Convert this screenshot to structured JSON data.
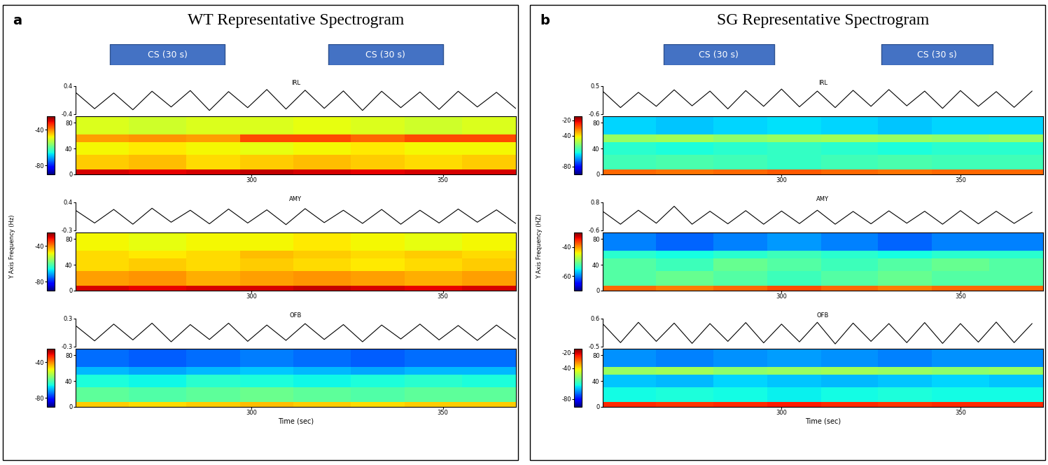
{
  "chart_data": [
    {
      "type": "spectrogram",
      "label": "a",
      "title": "WT Representative Spectrogram",
      "ylabel": "Y Axis Frequency (Hz)",
      "xlabel": "Time (sec)",
      "xlim": [
        254,
        369
      ],
      "xticks": [
        300,
        350
      ],
      "cs": [
        {
          "text": "CS (30 s)",
          "start": 263,
          "end": 293
        },
        {
          "text": "CS (30 s)",
          "start": 320,
          "end": 350
        }
      ],
      "time_edges": [
        254,
        268,
        283,
        297,
        311,
        326,
        340,
        355,
        369
      ],
      "freq_edges": [
        0,
        8,
        30,
        50,
        62,
        90
      ],
      "freq_lim": [
        0,
        90
      ],
      "freq_ticks": [
        0,
        40,
        80
      ],
      "trace_x": [
        254,
        259,
        264,
        269,
        274,
        279,
        284,
        289,
        294,
        299,
        304,
        309,
        314,
        319,
        324,
        329,
        334,
        339,
        344,
        349,
        354,
        359,
        364,
        369
      ],
      "channels": [
        {
          "name": "IRL",
          "ylim": [
            -0.4,
            0.4
          ],
          "yticks": [
            -0.4,
            0.4
          ],
          "trace": [
            0.22,
            -0.25,
            0.2,
            -0.28,
            0.25,
            -0.2,
            0.27,
            -0.3,
            0.24,
            -0.22,
            0.3,
            -0.26,
            0.28,
            -0.24,
            0.26,
            -0.3,
            0.25,
            -0.22,
            0.23,
            -0.27,
            0.25,
            -0.2,
            0.22,
            -0.24
          ],
          "colorbar_range": [
            -90,
            -25
          ],
          "colorbar_ticks": [
            -80,
            -40
          ],
          "cells": [
            [
              -30,
              -31,
              -30,
              -29,
              -30,
              -31,
              -30,
              -30
            ],
            [
              -45,
              -44,
              -46,
              -45,
              -44,
              -45,
              -46,
              -45
            ],
            [
              -48,
              -47,
              -48,
              -49,
              -48,
              -47,
              -48,
              -48
            ],
            [
              -42,
              -41,
              -42,
              -36,
              -36,
              -38,
              -36,
              -36
            ],
            [
              -50,
              -51,
              -50,
              -50,
              -49,
              -50,
              -51,
              -50
            ]
          ]
        },
        {
          "name": "AMY",
          "ylim": [
            -0.3,
            0.4
          ],
          "yticks": [
            -0.3,
            0.4
          ],
          "trace": [
            0.2,
            -0.12,
            0.22,
            -0.15,
            0.25,
            -0.1,
            0.2,
            -0.14,
            0.23,
            -0.12,
            0.21,
            -0.16,
            0.24,
            -0.11,
            0.2,
            -0.13,
            0.22,
            -0.15,
            0.2,
            -0.12,
            0.23,
            -0.1,
            0.21,
            -0.13
          ],
          "colorbar_range": [
            -90,
            -25
          ],
          "colorbar_ticks": [
            -80,
            -40
          ],
          "cells": [
            [
              -30,
              -31,
              -30,
              -30,
              -29,
              -30,
              -31,
              -30
            ],
            [
              -42,
              -41,
              -43,
              -42,
              -41,
              -42,
              -43,
              -42
            ],
            [
              -46,
              -45,
              -46,
              -45,
              -46,
              -47,
              -46,
              -45
            ],
            [
              -46,
              -47,
              -46,
              -44,
              -45,
              -46,
              -45,
              -46
            ],
            [
              -48,
              -49,
              -48,
              -48,
              -47,
              -48,
              -49,
              -48
            ]
          ]
        },
        {
          "name": "OFB",
          "ylim": [
            -0.3,
            0.3
          ],
          "yticks": [
            -0.3,
            0.3
          ],
          "trace": [
            0.15,
            -0.18,
            0.18,
            -0.16,
            0.2,
            -0.2,
            0.17,
            -0.15,
            0.2,
            -0.19,
            0.16,
            -0.17,
            0.19,
            -0.15,
            0.17,
            -0.2,
            0.16,
            -0.14,
            0.18,
            -0.16,
            0.15,
            -0.17,
            0.16,
            -0.14
          ],
          "colorbar_range": [
            -90,
            -25
          ],
          "colorbar_ticks": [
            -80,
            -40
          ],
          "cells": [
            [
              -45,
              -46,
              -45,
              -44,
              -45,
              -46,
              -45,
              -45
            ],
            [
              -60,
              -61,
              -60,
              -59,
              -60,
              -61,
              -60,
              -60
            ],
            [
              -65,
              -66,
              -64,
              -65,
              -66,
              -65,
              -64,
              -65
            ],
            [
              -70,
              -71,
              -70,
              -69,
              -70,
              -71,
              -70,
              -70
            ],
            [
              -75,
              -76,
              -75,
              -74,
              -75,
              -76,
              -75,
              -75
            ]
          ]
        }
      ]
    },
    {
      "type": "spectrogram",
      "label": "b",
      "title": "SG Representative Spectrogram",
      "ylabel": "Y Axis Frequency (HZ)",
      "xlabel": "Time (sec)",
      "xlim": [
        250,
        373
      ],
      "xticks": [
        300,
        350
      ],
      "cs": [
        {
          "text": "CS (30 s)",
          "start": 267,
          "end": 298
        },
        {
          "text": "CS (30 s)",
          "start": 328,
          "end": 359
        }
      ],
      "time_edges": [
        250,
        265,
        281,
        296,
        311,
        327,
        342,
        358,
        373
      ],
      "freq_edges": [
        0,
        8,
        30,
        50,
        62,
        90
      ],
      "freq_lim": [
        0,
        90
      ],
      "freq_ticks": [
        0,
        40,
        80
      ],
      "trace_x": [
        250,
        255,
        260,
        265,
        270,
        275,
        280,
        285,
        290,
        295,
        300,
        305,
        310,
        315,
        320,
        325,
        330,
        335,
        340,
        345,
        350,
        355,
        360,
        365,
        370
      ],
      "channels": [
        {
          "name": "IRL",
          "ylim": [
            -0.6,
            0.5
          ],
          "yticks": [
            -0.6,
            0.5
          ],
          "trace": [
            0.3,
            -0.35,
            0.25,
            -0.3,
            0.35,
            -0.28,
            0.3,
            -0.4,
            0.32,
            -0.3,
            0.38,
            -0.32,
            0.3,
            -0.35,
            0.33,
            -0.3,
            0.36,
            -0.28,
            0.3,
            -0.38,
            0.32,
            -0.3,
            0.28,
            -0.34,
            0.3
          ],
          "colorbar_range": [
            -90,
            -15
          ],
          "colorbar_ticks": [
            -80,
            -40,
            -20
          ],
          "cells": [
            [
              -30,
              -31,
              -30,
              -29,
              -30,
              -31,
              -30,
              -30
            ],
            [
              -58,
              -57,
              -58,
              -59,
              -58,
              -57,
              -58,
              -58
            ],
            [
              -60,
              -61,
              -60,
              -59,
              -60,
              -61,
              -60,
              -60
            ],
            [
              -50,
              -49,
              -51,
              -50,
              -49,
              -50,
              -51,
              -50
            ],
            [
              -65,
              -66,
              -65,
              -64,
              -65,
              -66,
              -65,
              -65
            ]
          ]
        },
        {
          "name": "AMY",
          "ylim": [
            -0.6,
            0.8
          ],
          "yticks": [
            -0.6,
            0.8
          ],
          "trace": [
            0.35,
            -0.3,
            0.4,
            -0.25,
            0.6,
            -0.3,
            0.35,
            -0.28,
            0.38,
            -0.3,
            0.36,
            -0.27,
            0.4,
            -0.3,
            0.34,
            -0.28,
            0.37,
            -0.25,
            0.35,
            -0.3,
            0.38,
            -0.28,
            0.35,
            -0.26,
            0.3
          ],
          "colorbar_range": [
            -70,
            -30
          ],
          "colorbar_ticks": [
            -60,
            -40
          ],
          "cells": [
            [
              -38,
              -39,
              -38,
              -37,
              -38,
              -39,
              -38,
              -38
            ],
            [
              -52,
              -51,
              -52,
              -53,
              -52,
              -51,
              -52,
              -52
            ],
            [
              -52,
              -53,
              -51,
              -52,
              -53,
              -52,
              -51,
              -52
            ],
            [
              -54,
              -55,
              -54,
              -53,
              -54,
              -55,
              -54,
              -54
            ],
            [
              -60,
              -61,
              -60,
              -59,
              -60,
              -61,
              -60,
              -60
            ]
          ]
        },
        {
          "name": "OFB",
          "ylim": [
            -0.5,
            0.6
          ],
          "yticks": [
            -0.5,
            0.6
          ],
          "trace": [
            0.4,
            -0.35,
            0.45,
            -0.3,
            0.42,
            -0.38,
            0.4,
            -0.3,
            0.44,
            -0.36,
            0.38,
            -0.32,
            0.45,
            -0.4,
            0.42,
            -0.3,
            0.4,
            -0.35,
            0.44,
            -0.38,
            0.4,
            -0.33,
            0.46,
            -0.35,
            0.4
          ],
          "colorbar_range": [
            -90,
            -15
          ],
          "colorbar_ticks": [
            -80,
            -40,
            -20
          ],
          "cells": [
            [
              -25,
              -26,
              -25,
              -24,
              -25,
              -26,
              -25,
              -25
            ],
            [
              -62,
              -61,
              -62,
              -63,
              -62,
              -61,
              -62,
              -62
            ],
            [
              -66,
              -67,
              -65,
              -66,
              -67,
              -66,
              -65,
              -66
            ],
            [
              -50,
              -49,
              -51,
              -50,
              -49,
              -50,
              -51,
              -50
            ],
            [
              -70,
              -71,
              -70,
              -69,
              -70,
              -71,
              -70,
              -70
            ]
          ]
        }
      ]
    }
  ]
}
